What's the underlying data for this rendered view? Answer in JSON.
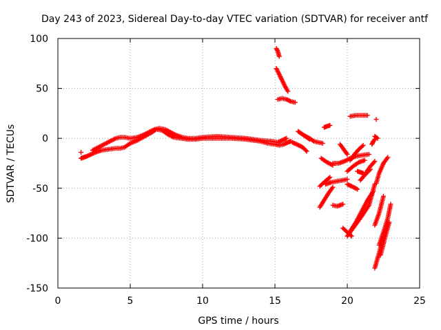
{
  "chart_data": {
    "type": "scatter",
    "title": "Day 243 of 2023, Sidereal Day-to-day VTEC variation (SDTVAR) for receiver antf",
    "xlabel": "GPS time / hours",
    "ylabel": "SDTVAR / TECUs",
    "xlim": [
      0,
      25
    ],
    "ylim": [
      -150,
      100
    ],
    "xticks": [
      0,
      5,
      10,
      15,
      20,
      25
    ],
    "yticks": [
      100,
      50,
      0,
      -50,
      -100,
      -150
    ],
    "xtick_labels": [
      "0",
      "5",
      "10",
      "15",
      "20",
      "25"
    ],
    "ytick_labels": [
      "100",
      "50",
      "0",
      "-50",
      "-100",
      "-150"
    ],
    "grid": true,
    "marker": "+",
    "color": "#ff0000",
    "series": [
      {
        "name": "main-trace",
        "x": [
          1.6,
          1.8,
          2.0,
          2.3,
          2.6,
          3.0,
          3.5,
          4.0,
          4.3,
          4.6,
          5.0,
          5.5,
          6.0,
          6.5,
          6.8,
          7.2,
          7.6,
          8.0,
          8.5,
          9.0,
          9.5,
          10.0,
          11.0,
          12.0,
          13.0,
          14.0,
          14.5,
          15.0,
          15.3,
          15.6,
          15.9,
          16.1
        ],
        "y": [
          -20,
          -19,
          -18,
          -16,
          -14,
          -12,
          -11,
          -10,
          -10,
          -9,
          -5,
          -2,
          2,
          6,
          9,
          8,
          4,
          1,
          0,
          -1,
          -1,
          0,
          0,
          0,
          -1,
          -3,
          -5,
          -6,
          -7,
          -6,
          -4,
          -3
        ]
      },
      {
        "name": "upper-trace",
        "x": [
          2.4,
          2.8,
          3.2,
          3.6,
          4.0,
          4.3,
          4.6,
          5.0,
          5.5,
          6.0,
          6.4,
          6.7,
          7.0,
          7.4,
          7.8,
          8.2,
          8.6,
          9.0,
          9.5,
          10.0,
          11.0,
          12.0,
          13.0,
          14.0,
          14.8,
          15.2,
          15.5,
          15.8
        ],
        "y": [
          -12,
          -9,
          -6,
          -3,
          0,
          1,
          1,
          0,
          1,
          4,
          7,
          9,
          10,
          9,
          6,
          3,
          1,
          0,
          0,
          1,
          2,
          1,
          0,
          -2,
          -3,
          -4,
          -2,
          0
        ]
      },
      {
        "name": "isolated-point",
        "x": [
          1.6
        ],
        "y": [
          -14
        ]
      },
      {
        "name": "arc-a-top",
        "x": [
          15.1,
          15.2,
          15.3
        ],
        "y": [
          90,
          87,
          82
        ]
      },
      {
        "name": "arc-a",
        "x": [
          15.1,
          15.3,
          15.5,
          15.7,
          15.9
        ],
        "y": [
          70,
          64,
          58,
          52,
          47
        ]
      },
      {
        "name": "arc-b",
        "x": [
          15.2,
          15.5,
          15.8,
          16.1,
          16.4
        ],
        "y": [
          39,
          40,
          39,
          37,
          36
        ]
      },
      {
        "name": "arc-c",
        "x": [
          16.2,
          16.5,
          16.8,
          17.0,
          17.2
        ],
        "y": [
          -4,
          -6,
          -8,
          -10,
          -13
        ]
      },
      {
        "name": "arc-d",
        "x": [
          16.6,
          16.8,
          17.0,
          17.2,
          17.4
        ],
        "y": [
          7,
          5,
          3,
          1,
          -1
        ]
      },
      {
        "name": "arc-e",
        "x": [
          17.0,
          17.4,
          17.7,
          18.0,
          18.3
        ],
        "y": [
          3,
          0,
          -3,
          -4,
          -5
        ]
      },
      {
        "name": "arc-f",
        "x": [
          18.4,
          18.6,
          18.8
        ],
        "y": [
          11,
          12,
          13
        ]
      },
      {
        "name": "arc-g",
        "x": [
          18.2,
          18.6,
          19.0
        ],
        "y": [
          -20,
          -24,
          -27
        ]
      },
      {
        "name": "arc-h",
        "x": [
          18.1,
          18.4,
          18.8
        ],
        "y": [
          -48,
          -44,
          -39
        ]
      },
      {
        "name": "arc-i",
        "x": [
          18.1,
          18.4,
          18.7,
          19.0
        ],
        "y": [
          -69,
          -62,
          -55,
          -49
        ]
      },
      {
        "name": "arc-j",
        "x": [
          18.5,
          18.9,
          19.3,
          19.7,
          20.0
        ],
        "y": [
          -46,
          -44,
          -43,
          -42,
          -41
        ]
      },
      {
        "name": "arc-k",
        "x": [
          19.0,
          19.3,
          19.7
        ],
        "y": [
          -67,
          -68,
          -66
        ]
      },
      {
        "name": "arc-l",
        "x": [
          19.0,
          19.4,
          19.8,
          20.2,
          20.6,
          21.0,
          21.5
        ],
        "y": [
          -25,
          -25,
          -23,
          -20,
          -18,
          -17,
          -16
        ]
      },
      {
        "name": "arc-m",
        "x": [
          19.5,
          19.8,
          20.0
        ],
        "y": [
          -6,
          -12,
          -16
        ]
      },
      {
        "name": "arc-n",
        "x": [
          20.2,
          20.5,
          20.8,
          21.1
        ],
        "y": [
          -22,
          -16,
          -11,
          -7
        ]
      },
      {
        "name": "arc-o",
        "x": [
          20.0,
          20.4,
          20.8,
          21.2
        ],
        "y": [
          -33,
          -28,
          -24,
          -22
        ]
      },
      {
        "name": "arc-p",
        "x": [
          20.0,
          20.3,
          20.7
        ],
        "y": [
          -46,
          -48,
          -51
        ]
      },
      {
        "name": "arc-q",
        "x": [
          20.7,
          20.9,
          21.1
        ],
        "y": [
          -33,
          -34,
          -35
        ]
      },
      {
        "name": "arc-r",
        "x": [
          19.7,
          20.0,
          20.3
        ],
        "y": [
          -90,
          -94,
          -98
        ]
      },
      {
        "name": "arc-s",
        "x": [
          20.0,
          20.5,
          21.0,
          21.5,
          21.9
        ],
        "y": [
          -98,
          -88,
          -78,
          -67,
          -46
        ]
      },
      {
        "name": "arc-t",
        "x": [
          20.2,
          20.6,
          21.0,
          21.4,
          21.8
        ],
        "y": [
          -93,
          -84,
          -73,
          -62,
          -53
        ]
      },
      {
        "name": "arc-u",
        "x": [
          20.9,
          21.2,
          21.6
        ],
        "y": [
          -42,
          -37,
          -31
        ]
      },
      {
        "name": "arc-v",
        "x": [
          21.3,
          21.6,
          21.9
        ],
        "y": [
          -34,
          -28,
          -23
        ]
      },
      {
        "name": "arc-w",
        "x": [
          21.7,
          21.8,
          21.9
        ],
        "y": [
          -6,
          -3,
          -1
        ]
      },
      {
        "name": "arc-x",
        "x": [
          21.9,
          22.1
        ],
        "y": [
          2,
          0
        ]
      },
      {
        "name": "arc-y",
        "x": [
          20.2,
          20.6,
          21.0,
          21.4
        ],
        "y": [
          22,
          23,
          23,
          23
        ]
      },
      {
        "name": "arc-z",
        "x": [
          22.0
        ],
        "y": [
          19
        ]
      },
      {
        "name": "arc-aa",
        "x": [
          22.0,
          22.2,
          22.5,
          22.8
        ],
        "y": [
          -45,
          -35,
          -25,
          -19
        ]
      },
      {
        "name": "arc-ab",
        "x": [
          21.9,
          22.2,
          22.5,
          22.8
        ],
        "y": [
          -130,
          -115,
          -98,
          -85
        ]
      },
      {
        "name": "arc-ac",
        "x": [
          22.2,
          22.5,
          22.8,
          23.0
        ],
        "y": [
          -107,
          -94,
          -80,
          -66
        ]
      },
      {
        "name": "arc-ad",
        "x": [
          21.9,
          22.2,
          22.5
        ],
        "y": [
          -87,
          -75,
          -58
        ]
      },
      {
        "name": "arc-ae",
        "x": [
          22.3,
          22.6,
          22.9
        ],
        "y": [
          -117,
          -100,
          -84
        ]
      }
    ]
  }
}
